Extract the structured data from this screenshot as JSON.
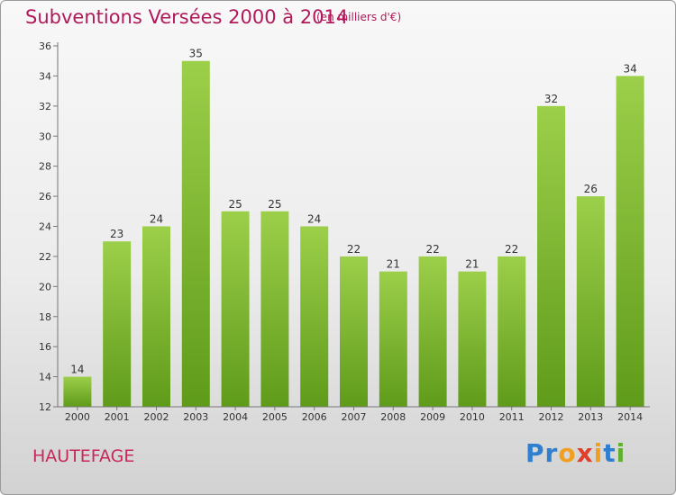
{
  "title": "Subventions Versées 2000 à 2014",
  "unit_note": "(en milliers d'€)",
  "commune": "HAUTEFAGE",
  "logo": {
    "letters": [
      {
        "char": "P",
        "color": "#2f7fd0"
      },
      {
        "char": "r",
        "color": "#2f7fd0"
      },
      {
        "char": "o",
        "color": "#f0a020"
      },
      {
        "char": "x",
        "color": "#e0402a"
      },
      {
        "char": "i",
        "color": "#f0a020"
      },
      {
        "char": "t",
        "color": "#2f7fd0"
      },
      {
        "char": "i",
        "color": "#60b030"
      }
    ]
  },
  "chart_data": {
    "type": "bar",
    "categories": [
      "2000",
      "2001",
      "2002",
      "2003",
      "2004",
      "2005",
      "2006",
      "2007",
      "2008",
      "2009",
      "2010",
      "2011",
      "2012",
      "2013",
      "2014"
    ],
    "values": [
      14,
      23,
      24,
      35,
      25,
      25,
      24,
      22,
      21,
      22,
      21,
      22,
      32,
      26,
      34
    ],
    "ylim": [
      12,
      36
    ],
    "yticks": [
      12,
      14,
      16,
      18,
      20,
      22,
      24,
      26,
      28,
      30,
      32,
      34,
      36
    ],
    "grid": false,
    "data_labels": true,
    "colors": {
      "bar_top": "#9ccf4a",
      "bar_bottom": "#5f9b1a",
      "axis": "#777777"
    }
  }
}
